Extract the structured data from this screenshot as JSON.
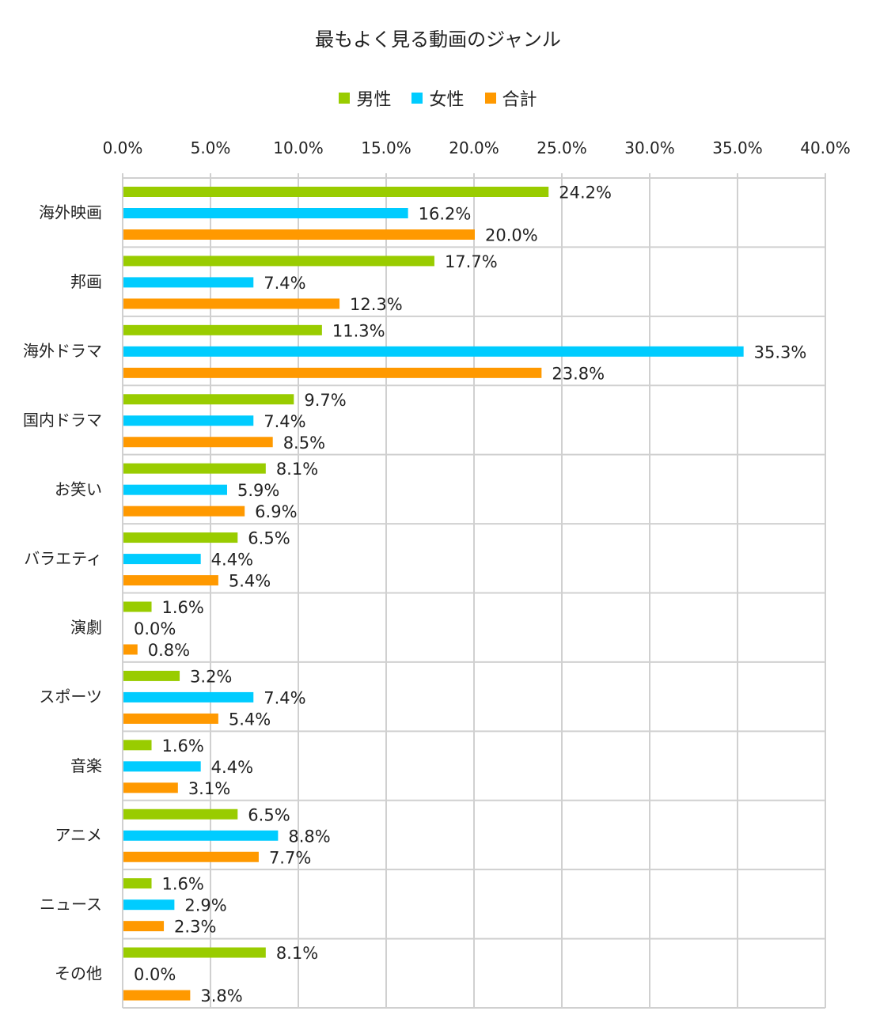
{
  "chart_data": {
    "type": "bar",
    "orientation": "horizontal",
    "title": "最もよく見る動画のジャンル",
    "categories": [
      "海外映画",
      "邦画",
      "海外ドラマ",
      "国内ドラマ",
      "お笑い",
      "バラエティ",
      "演劇",
      "スポーツ",
      "音楽",
      "アニメ",
      "ニュース",
      "その他"
    ],
    "series": [
      {
        "name": "男性",
        "color": "#99cc00",
        "values": [
          24.2,
          17.7,
          11.3,
          9.7,
          8.1,
          6.5,
          1.6,
          3.2,
          1.6,
          6.5,
          1.6,
          8.1
        ]
      },
      {
        "name": "女性",
        "color": "#00ccff",
        "values": [
          16.2,
          7.4,
          35.3,
          7.4,
          5.9,
          4.4,
          0.0,
          7.4,
          4.4,
          8.8,
          2.9,
          0.0
        ]
      },
      {
        "name": "合計",
        "color": "#ff9900",
        "values": [
          20.0,
          12.3,
          23.8,
          8.5,
          6.9,
          5.4,
          0.8,
          5.4,
          3.1,
          7.7,
          2.3,
          3.8
        ]
      }
    ],
    "value_labels": [
      [
        "24.2%",
        "17.7%",
        "11.3%",
        "9.7%",
        "8.1%",
        "6.5%",
        "1.6%",
        "3.2%",
        "1.6%",
        "6.5%",
        "1.6%",
        "8.1%"
      ],
      [
        "16.2%",
        "7.4%",
        "35.3%",
        "7.4%",
        "5.9%",
        "4.4%",
        "0.0%",
        "7.4%",
        "4.4%",
        "8.8%",
        "2.9%",
        "0.0%"
      ],
      [
        "20.0%",
        "12.3%",
        "23.8%",
        "8.5%",
        "6.9%",
        "5.4%",
        "0.8%",
        "5.4%",
        "3.1%",
        "7.7%",
        "2.3%",
        "3.8%"
      ]
    ],
    "xlim": [
      0,
      40
    ],
    "x_ticks": [
      "0.0%",
      "5.0%",
      "10.0%",
      "15.0%",
      "20.0%",
      "25.0%",
      "30.0%",
      "35.0%",
      "40.0%"
    ],
    "x_axis_position": "top",
    "grid": true,
    "legend_position": "top"
  }
}
